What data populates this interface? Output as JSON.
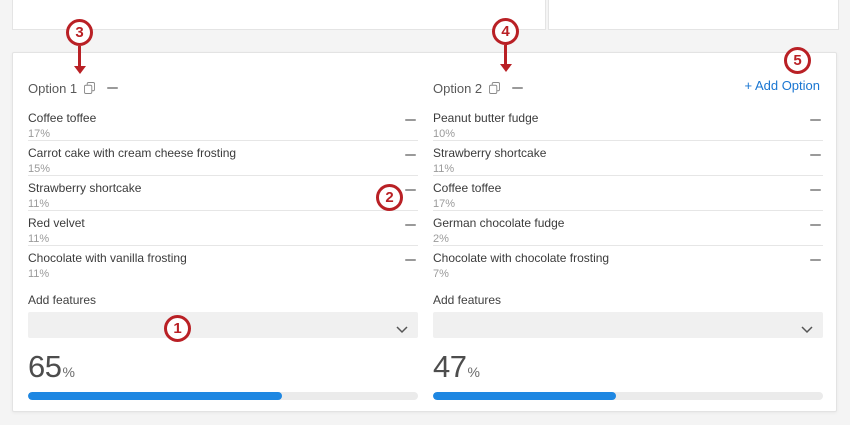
{
  "panel": {
    "add_option_label": "+ Add Option",
    "options": [
      {
        "title": "Option 1",
        "add_features_label": "Add features",
        "features": [
          {
            "name": "Coffee toffee",
            "share": "17%"
          },
          {
            "name": "Carrot cake with cream cheese frosting",
            "share": "15%"
          },
          {
            "name": "Strawberry shortcake",
            "share": "11%"
          },
          {
            "name": "Red velvet",
            "share": "11%"
          },
          {
            "name": "Chocolate with vanilla frosting",
            "share": "11%"
          }
        ],
        "score": {
          "value": "65",
          "unit": "%",
          "percent": 65
        }
      },
      {
        "title": "Option 2",
        "add_features_label": "Add features",
        "features": [
          {
            "name": "Peanut butter fudge",
            "share": "10%"
          },
          {
            "name": "Strawberry shortcake",
            "share": "11%"
          },
          {
            "name": "Coffee toffee",
            "share": "17%"
          },
          {
            "name": "German chocolate fudge",
            "share": "2%"
          },
          {
            "name": "Chocolate with chocolate frosting",
            "share": "7%"
          }
        ],
        "score": {
          "value": "47",
          "unit": "%",
          "percent": 47
        }
      }
    ]
  },
  "annotations": {
    "callout_1": "1",
    "callout_2": "2",
    "callout_3": "3",
    "callout_4": "4",
    "callout_5": "5"
  },
  "colors": {
    "callout_red": "#b92025",
    "link_blue": "#1976d2",
    "progress_blue": "#1e87e2"
  },
  "icons": {
    "copy_option": "copy-icon",
    "remove_option": "minus-icon",
    "remove_feature": "minus-icon",
    "select_chevron": "chevron-down-icon"
  }
}
